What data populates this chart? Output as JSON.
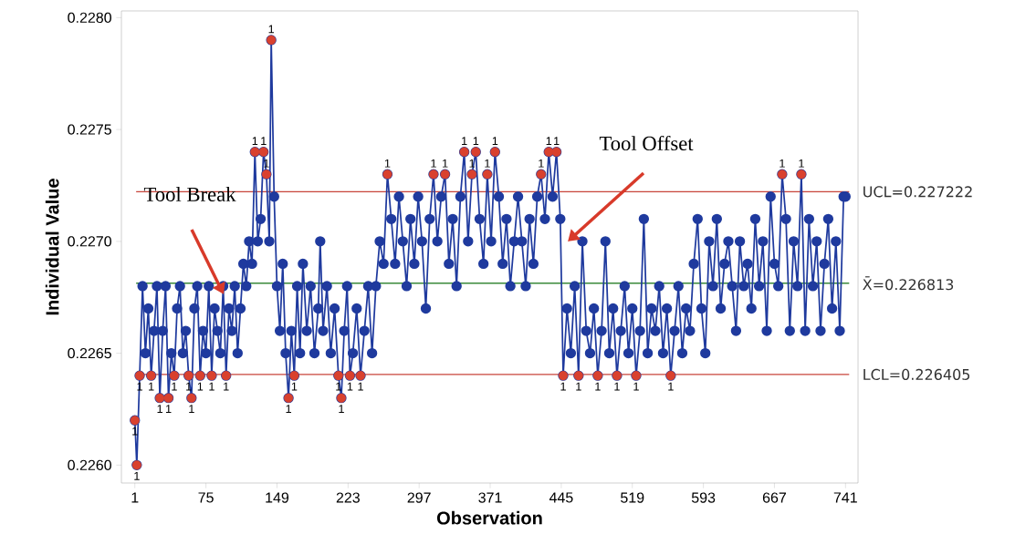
{
  "chart_data": {
    "type": "line",
    "xlabel": "Observation",
    "ylabel": "Individual Value",
    "xlim": [
      -13,
      754
    ],
    "ylim": [
      0.22592,
      0.22803
    ],
    "xticks": [
      1,
      75,
      149,
      223,
      297,
      371,
      445,
      519,
      593,
      667,
      741
    ],
    "yticks": [
      {
        "value": 0.226,
        "label": "0.2260"
      },
      {
        "value": 0.2265,
        "label": "0.2265"
      },
      {
        "value": 0.227,
        "label": "0.2270"
      },
      {
        "value": 0.2275,
        "label": "0.2275"
      },
      {
        "value": 0.228,
        "label": "0.2280"
      }
    ],
    "marker": "circle",
    "series": [
      {
        "color": "#1f3a9e",
        "x": [
          1,
          3,
          6,
          9,
          12,
          15,
          18,
          21,
          24,
          27,
          30,
          33,
          36,
          39,
          42,
          45,
          48,
          51,
          54,
          57,
          60,
          63,
          66,
          69,
          72,
          75,
          78,
          81,
          84,
          87,
          90,
          93,
          96,
          99,
          102,
          105,
          108,
          111,
          114,
          117,
          120,
          123,
          126,
          129,
          132,
          135,
          138,
          141,
          143,
          146,
          149,
          152,
          155,
          158,
          161,
          164,
          167,
          170,
          173,
          176,
          180,
          184,
          188,
          192,
          194,
          197,
          201,
          205,
          209,
          213,
          216,
          219,
          222,
          225,
          228,
          232,
          236,
          240,
          244,
          248,
          252,
          256,
          260,
          264,
          268,
          272,
          276,
          280,
          284,
          288,
          292,
          296,
          300,
          304,
          308,
          312,
          316,
          320,
          324,
          328,
          332,
          336,
          340,
          344,
          348,
          352,
          356,
          360,
          364,
          368,
          372,
          376,
          380,
          384,
          388,
          392,
          396,
          400,
          404,
          408,
          412,
          416,
          420,
          424,
          428,
          432,
          436,
          440,
          444,
          447,
          451,
          455,
          459,
          463,
          467,
          471,
          475,
          479,
          483,
          487,
          491,
          495,
          499,
          503,
          507,
          511,
          515,
          519,
          523,
          527,
          531,
          535,
          539,
          543,
          547,
          551,
          555,
          559,
          563,
          567,
          571,
          575,
          579,
          583,
          587,
          591,
          595,
          599,
          603,
          607,
          611,
          615,
          619,
          623,
          627,
          631,
          635,
          639,
          643,
          647,
          651,
          655,
          659,
          663,
          667,
          671,
          675,
          679,
          683,
          687,
          691,
          695,
          699,
          703,
          707,
          711,
          715,
          719,
          723,
          727,
          731,
          735,
          739,
          741
        ],
        "values": [
          0.2262,
          0.226,
          0.2264,
          0.2268,
          0.2265,
          0.2267,
          0.2264,
          0.2266,
          0.2268,
          0.2263,
          0.2266,
          0.2268,
          0.2263,
          0.2265,
          0.2264,
          0.2267,
          0.2268,
          0.2265,
          0.2266,
          0.2264,
          0.2263,
          0.2267,
          0.2268,
          0.2264,
          0.2266,
          0.2265,
          0.2268,
          0.2264,
          0.2267,
          0.2266,
          0.2265,
          0.2268,
          0.2264,
          0.2267,
          0.2266,
          0.2268,
          0.2265,
          0.2267,
          0.2269,
          0.2268,
          0.227,
          0.2269,
          0.2274,
          0.227,
          0.2271,
          0.2274,
          0.2273,
          0.227,
          0.2279,
          0.2272,
          0.2268,
          0.2266,
          0.2269,
          0.2265,
          0.2263,
          0.2266,
          0.2264,
          0.2268,
          0.2265,
          0.2269,
          0.2266,
          0.2268,
          0.2265,
          0.2267,
          0.227,
          0.2266,
          0.2268,
          0.2265,
          0.2267,
          0.2264,
          0.2263,
          0.2266,
          0.2268,
          0.2264,
          0.2265,
          0.2267,
          0.2264,
          0.2266,
          0.2268,
          0.2265,
          0.2268,
          0.227,
          0.2269,
          0.2273,
          0.2271,
          0.2269,
          0.2272,
          0.227,
          0.2268,
          0.2271,
          0.2269,
          0.2272,
          0.227,
          0.2267,
          0.2271,
          0.2273,
          0.227,
          0.2272,
          0.2273,
          0.2269,
          0.2271,
          0.2268,
          0.2272,
          0.2274,
          0.227,
          0.2273,
          0.2274,
          0.2271,
          0.2269,
          0.2273,
          0.227,
          0.2274,
          0.2272,
          0.2269,
          0.2271,
          0.2268,
          0.227,
          0.2272,
          0.227,
          0.2268,
          0.2271,
          0.2269,
          0.2272,
          0.2273,
          0.2271,
          0.2274,
          0.2272,
          0.2274,
          0.2271,
          0.2264,
          0.2267,
          0.2265,
          0.2268,
          0.2264,
          0.227,
          0.2266,
          0.2265,
          0.2267,
          0.2264,
          0.2266,
          0.227,
          0.2265,
          0.2267,
          0.2264,
          0.2266,
          0.2268,
          0.2265,
          0.2267,
          0.2264,
          0.2266,
          0.2271,
          0.2265,
          0.2267,
          0.2266,
          0.2268,
          0.2265,
          0.2267,
          0.2264,
          0.2266,
          0.2268,
          0.2265,
          0.2267,
          0.2266,
          0.2269,
          0.2271,
          0.2267,
          0.2265,
          0.227,
          0.2268,
          0.2271,
          0.2267,
          0.2269,
          0.227,
          0.2268,
          0.2266,
          0.227,
          0.2268,
          0.2269,
          0.2267,
          0.2271,
          0.2268,
          0.227,
          0.2266,
          0.2272,
          0.2269,
          0.2268,
          0.2273,
          0.2271,
          0.2266,
          0.227,
          0.2268,
          0.2273,
          0.2266,
          0.2271,
          0.2268,
          0.227,
          0.2266,
          0.2269,
          0.2271,
          0.2267,
          0.227,
          0.2266,
          0.2272,
          0.2272
        ]
      },
      {
        "type": "scatter",
        "color": "#d9412e",
        "x": [
          1,
          3,
          6,
          18,
          27,
          36,
          42,
          57,
          60,
          69,
          81,
          96,
          126,
          135,
          138,
          143,
          161,
          167,
          213,
          216,
          225,
          236,
          264,
          312,
          324,
          344,
          352,
          356,
          368,
          376,
          424,
          432,
          440,
          447,
          463,
          483,
          503,
          523,
          559,
          675,
          695
        ],
        "values": [
          0.2262,
          0.226,
          0.2264,
          0.2264,
          0.2263,
          0.2263,
          0.2264,
          0.2264,
          0.2263,
          0.2264,
          0.2264,
          0.2264,
          0.2274,
          0.2274,
          0.2273,
          0.2279,
          0.2263,
          0.2264,
          0.2264,
          0.2263,
          0.2264,
          0.2264,
          0.2273,
          0.2273,
          0.2273,
          0.2274,
          0.2273,
          0.2274,
          0.2273,
          0.2274,
          0.2273,
          0.2274,
          0.2274,
          0.2264,
          0.2264,
          0.2264,
          0.2264,
          0.2264,
          0.2264,
          0.2273,
          0.2273
        ]
      }
    ],
    "ref_lines": [
      {
        "axis": "y",
        "value": 0.227222,
        "label": "UCL=0.227222",
        "color": "#c8443a"
      },
      {
        "axis": "y",
        "value": 0.226813,
        "label": "X̄=0.226813",
        "color": "#3a8a3a"
      },
      {
        "axis": "y",
        "value": 0.226405,
        "label": "LCL=0.226405",
        "color": "#c8443a"
      }
    ],
    "annotations": [
      "Tool Break",
      "Tool Offset",
      {
        "text": "1",
        "x": 1,
        "y": 0.2262
      },
      {
        "text": "1",
        "x": 3,
        "y": 0.226
      },
      {
        "text": "1",
        "x": 6,
        "y": 0.2264
      },
      {
        "text": "1",
        "x": 18,
        "y": 0.2264
      },
      {
        "text": "1",
        "x": 27,
        "y": 0.2263
      },
      {
        "text": "1",
        "x": 36,
        "y": 0.2263
      },
      {
        "text": "1",
        "x": 42,
        "y": 0.2264
      },
      {
        "text": "1",
        "x": 57,
        "y": 0.2264
      },
      {
        "text": "1",
        "x": 60,
        "y": 0.2263
      },
      {
        "text": "1",
        "x": 69,
        "y": 0.2264
      },
      {
        "text": "1",
        "x": 81,
        "y": 0.2264
      },
      {
        "text": "1",
        "x": 96,
        "y": 0.2264
      },
      {
        "text": "1",
        "x": 126,
        "y": 0.2274
      },
      {
        "text": "1",
        "x": 135,
        "y": 0.2274
      },
      {
        "text": "1",
        "x": 138,
        "y": 0.2273
      },
      {
        "text": "1",
        "x": 143,
        "y": 0.2279
      },
      {
        "text": "1",
        "x": 161,
        "y": 0.2263
      },
      {
        "text": "1",
        "x": 167,
        "y": 0.2264
      },
      {
        "text": "1",
        "x": 213,
        "y": 0.2264
      },
      {
        "text": "1",
        "x": 216,
        "y": 0.2263
      },
      {
        "text": "1",
        "x": 225,
        "y": 0.2264
      },
      {
        "text": "1",
        "x": 236,
        "y": 0.2264
      },
      {
        "text": "1",
        "x": 264,
        "y": 0.2273
      },
      {
        "text": "1",
        "x": 312,
        "y": 0.2273
      },
      {
        "text": "1",
        "x": 324,
        "y": 0.2273
      },
      {
        "text": "1",
        "x": 344,
        "y": 0.2274
      },
      {
        "text": "1",
        "x": 352,
        "y": 0.2273
      },
      {
        "text": "1",
        "x": 356,
        "y": 0.2274
      },
      {
        "text": "1",
        "x": 368,
        "y": 0.2273
      },
      {
        "text": "1",
        "x": 376,
        "y": 0.2274
      },
      {
        "text": "1",
        "x": 424,
        "y": 0.2273
      },
      {
        "text": "1",
        "x": 432,
        "y": 0.2274
      },
      {
        "text": "1",
        "x": 440,
        "y": 0.2274
      },
      {
        "text": "1",
        "x": 447,
        "y": 0.2264
      },
      {
        "text": "1",
        "x": 463,
        "y": 0.2264
      },
      {
        "text": "1",
        "x": 483,
        "y": 0.2264
      },
      {
        "text": "1",
        "x": 503,
        "y": 0.2264
      },
      {
        "text": "1",
        "x": 523,
        "y": 0.2264
      },
      {
        "text": "1",
        "x": 559,
        "y": 0.2264
      },
      {
        "text": "1",
        "x": 675,
        "y": 0.2273
      },
      {
        "text": "1",
        "x": 695,
        "y": 0.2273
      }
    ]
  }
}
